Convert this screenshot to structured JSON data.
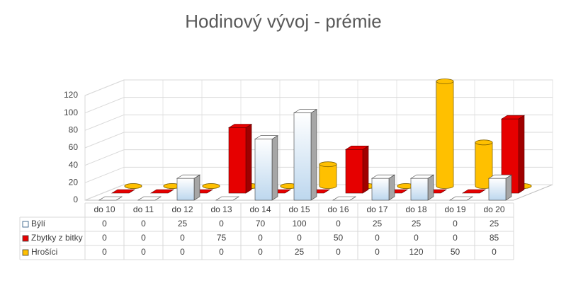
{
  "chart_data": {
    "type": "bar3d",
    "title": "Hodinový vývoj - prémie",
    "categories": [
      "do 10",
      "do 11",
      "do 12",
      "do 13",
      "do 14",
      "do 15",
      "do 16",
      "do 17",
      "do 18",
      "do 19",
      "do 20"
    ],
    "series": [
      {
        "name": "Býlí",
        "color": "#bdd7ee",
        "values": [
          0,
          0,
          25,
          0,
          70,
          100,
          0,
          25,
          25,
          0,
          25
        ]
      },
      {
        "name": "Zbytky z bitky",
        "color": "#e60000",
        "values": [
          0,
          0,
          0,
          75,
          0,
          0,
          50,
          0,
          0,
          0,
          85
        ]
      },
      {
        "name": "Hrošíci",
        "color": "#ffc000",
        "values": [
          0,
          0,
          0,
          0,
          0,
          25,
          0,
          0,
          120,
          50,
          0
        ]
      }
    ],
    "ylim": [
      0,
      120
    ],
    "yticks": [
      0,
      20,
      40,
      60,
      80,
      100,
      120
    ],
    "grid": true
  }
}
